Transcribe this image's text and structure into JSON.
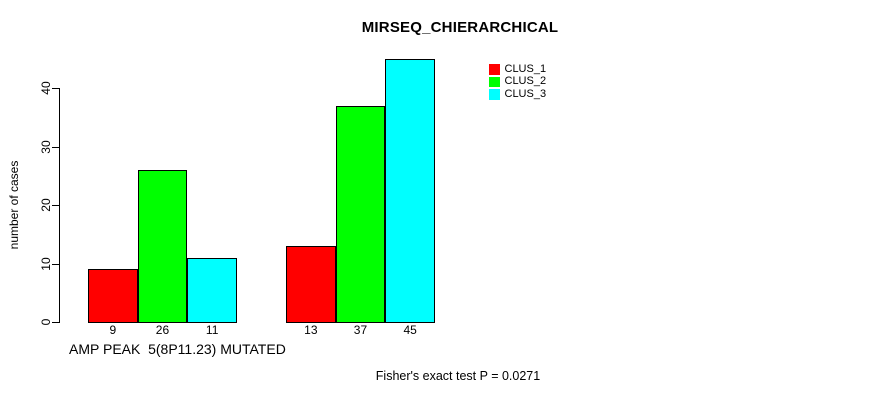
{
  "chart_data": {
    "type": "bar",
    "title": "MIRSEQ_CHIERARCHICAL",
    "ylabel": "number of cases",
    "xlabel": "AMP PEAK  5(8P11.23) MUTATED",
    "footnote": "Fisher's exact test P = 0.0271",
    "series": [
      {
        "name": "CLUS_1",
        "color": "#ff0000",
        "values": [
          9,
          13
        ]
      },
      {
        "name": "CLUS_2",
        "color": "#00ff00",
        "values": [
          26,
          37
        ]
      },
      {
        "name": "CLUS_3",
        "color": "#00ffff",
        "values": [
          11,
          45
        ]
      }
    ],
    "group_count": 2,
    "bar_value_labels": [
      [
        9,
        26,
        11
      ],
      [
        13,
        37,
        45
      ]
    ],
    "yticks": [
      0,
      10,
      20,
      30,
      40
    ],
    "ylim": [
      0,
      45
    ],
    "grid": false,
    "legend_position": "right-outside",
    "axis_color": "#000000",
    "background_color": "#ffffff"
  }
}
